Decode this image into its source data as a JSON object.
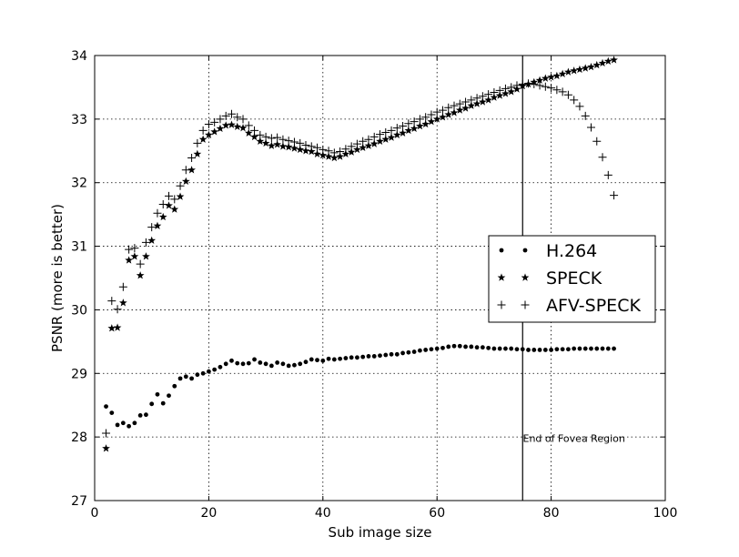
{
  "chart_data": {
    "type": "scatter",
    "xlabel": "Sub image size",
    "ylabel": "PSNR (more is better)",
    "xlim": [
      0,
      100
    ],
    "ylim": [
      27,
      34
    ],
    "xticks": [
      0,
      20,
      40,
      60,
      80,
      100
    ],
    "yticks": [
      27,
      28,
      29,
      30,
      31,
      32,
      33,
      34
    ],
    "grid": true,
    "legend_position": "center-right",
    "vline": {
      "x": 75,
      "label": "End of Fovea Region"
    },
    "series": [
      {
        "name": "H.264",
        "marker": "dot",
        "x": [
          2,
          3,
          4,
          5,
          6,
          7,
          8,
          9,
          10,
          11,
          12,
          13,
          14,
          15,
          16,
          17,
          18,
          19,
          20,
          21,
          22,
          23,
          24,
          25,
          26,
          27,
          28,
          29,
          30,
          31,
          32,
          33,
          34,
          35,
          36,
          37,
          38,
          39,
          40,
          41,
          42,
          43,
          44,
          45,
          46,
          47,
          48,
          49,
          50,
          51,
          52,
          53,
          54,
          55,
          56,
          57,
          58,
          59,
          60,
          61,
          62,
          63,
          64,
          65,
          66,
          67,
          68,
          69,
          70,
          71,
          72,
          73,
          74,
          75,
          76,
          77,
          78,
          79,
          80,
          81,
          82,
          83,
          84,
          85,
          86,
          87,
          88,
          89,
          90,
          91
        ],
        "y": [
          28.48,
          28.38,
          28.19,
          28.22,
          28.17,
          28.22,
          28.34,
          28.35,
          28.52,
          28.67,
          28.53,
          28.65,
          28.8,
          28.92,
          28.95,
          28.92,
          28.98,
          29.0,
          29.03,
          29.06,
          29.1,
          29.15,
          29.2,
          29.16,
          29.15,
          29.16,
          29.22,
          29.17,
          29.15,
          29.12,
          29.17,
          29.15,
          29.12,
          29.13,
          29.15,
          29.18,
          29.22,
          29.21,
          29.2,
          29.23,
          29.22,
          29.23,
          29.24,
          29.25,
          29.25,
          29.26,
          29.27,
          29.27,
          29.28,
          29.29,
          29.3,
          29.3,
          29.32,
          29.33,
          29.34,
          29.36,
          29.37,
          29.38,
          29.39,
          29.4,
          29.42,
          29.43,
          29.43,
          29.42,
          29.42,
          29.41,
          29.41,
          29.4,
          29.39,
          29.39,
          29.39,
          29.39,
          29.38,
          29.38,
          29.37,
          29.37,
          29.37,
          29.37,
          29.37,
          29.38,
          29.38,
          29.38,
          29.39,
          29.39,
          29.39,
          29.39,
          29.39,
          29.39,
          29.39,
          29.39
        ]
      },
      {
        "name": "SPECK",
        "marker": "star",
        "x": [
          2,
          3,
          4,
          5,
          6,
          7,
          8,
          9,
          10,
          11,
          12,
          13,
          14,
          15,
          16,
          17,
          18,
          19,
          20,
          21,
          22,
          23,
          24,
          25,
          26,
          27,
          28,
          29,
          30,
          31,
          32,
          33,
          34,
          35,
          36,
          37,
          38,
          39,
          40,
          41,
          42,
          43,
          44,
          45,
          46,
          47,
          48,
          49,
          50,
          51,
          52,
          53,
          54,
          55,
          56,
          57,
          58,
          59,
          60,
          61,
          62,
          63,
          64,
          65,
          66,
          67,
          68,
          69,
          70,
          71,
          72,
          73,
          74,
          75,
          76,
          77,
          78,
          79,
          80,
          81,
          82,
          83,
          84,
          85,
          86,
          87,
          88,
          89,
          90,
          91
        ],
        "y": [
          27.82,
          29.71,
          29.72,
          30.11,
          30.78,
          30.84,
          30.54,
          30.84,
          31.09,
          31.32,
          31.46,
          31.64,
          31.58,
          31.78,
          32.02,
          32.2,
          32.45,
          32.68,
          32.75,
          32.8,
          32.85,
          32.9,
          32.91,
          32.88,
          32.86,
          32.78,
          32.72,
          32.65,
          32.62,
          32.58,
          32.6,
          32.57,
          32.56,
          32.54,
          32.52,
          32.5,
          32.49,
          32.45,
          32.43,
          32.41,
          32.39,
          32.41,
          32.45,
          32.48,
          32.52,
          32.55,
          32.58,
          32.61,
          32.65,
          32.68,
          32.71,
          32.75,
          32.78,
          32.82,
          32.85,
          32.89,
          32.92,
          32.96,
          33.0,
          33.03,
          33.07,
          33.1,
          33.14,
          33.17,
          33.21,
          33.24,
          33.27,
          33.3,
          33.34,
          33.37,
          33.4,
          33.43,
          33.47,
          33.52,
          33.55,
          33.58,
          33.61,
          33.64,
          33.66,
          33.68,
          33.71,
          33.74,
          33.76,
          33.78,
          33.8,
          33.82,
          33.85,
          33.88,
          33.91,
          33.93
        ]
      },
      {
        "name": "AFV-SPECK",
        "marker": "plus",
        "x": [
          2,
          3,
          4,
          5,
          6,
          7,
          8,
          9,
          10,
          11,
          12,
          13,
          14,
          15,
          16,
          17,
          18,
          19,
          20,
          21,
          22,
          23,
          24,
          25,
          26,
          27,
          28,
          29,
          30,
          31,
          32,
          33,
          34,
          35,
          36,
          37,
          38,
          39,
          40,
          41,
          42,
          43,
          44,
          45,
          46,
          47,
          48,
          49,
          50,
          51,
          52,
          53,
          54,
          55,
          56,
          57,
          58,
          59,
          60,
          61,
          62,
          63,
          64,
          65,
          66,
          67,
          68,
          69,
          70,
          71,
          72,
          73,
          74,
          75,
          76,
          77,
          78,
          79,
          80,
          81,
          82,
          83,
          84,
          85,
          86,
          87,
          88,
          89,
          90,
          91
        ],
        "y": [
          28.06,
          30.14,
          30.01,
          30.36,
          30.95,
          30.97,
          30.72,
          31.06,
          31.3,
          31.52,
          31.66,
          31.79,
          31.74,
          31.95,
          32.2,
          32.39,
          32.62,
          32.82,
          32.92,
          32.95,
          33.0,
          33.05,
          33.08,
          33.03,
          33.0,
          32.9,
          32.82,
          32.75,
          32.72,
          32.7,
          32.71,
          32.68,
          32.66,
          32.64,
          32.62,
          32.59,
          32.57,
          32.55,
          32.52,
          32.5,
          32.47,
          32.49,
          32.53,
          32.57,
          32.61,
          32.65,
          32.68,
          32.72,
          32.76,
          32.79,
          32.82,
          32.86,
          32.89,
          32.93,
          32.96,
          33.0,
          33.03,
          33.07,
          33.11,
          33.14,
          33.18,
          33.21,
          33.24,
          33.27,
          33.3,
          33.33,
          33.36,
          33.39,
          33.42,
          33.45,
          33.48,
          33.5,
          33.53,
          33.55,
          33.56,
          33.55,
          33.53,
          33.51,
          33.49,
          33.46,
          33.43,
          33.38,
          33.3,
          33.2,
          33.05,
          32.87,
          32.65,
          32.4,
          32.12,
          31.8
        ]
      }
    ]
  }
}
